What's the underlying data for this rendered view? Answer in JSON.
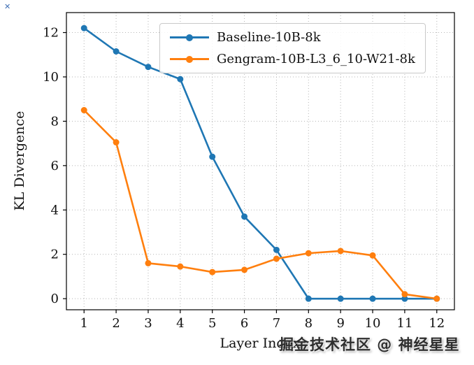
{
  "figure": {
    "background": "#ffffff"
  },
  "chart_data": {
    "type": "line",
    "title": "",
    "xlabel": "Layer Index",
    "ylabel": "KL Divergence",
    "x": [
      1,
      2,
      3,
      4,
      5,
      6,
      7,
      8,
      9,
      10,
      11,
      12
    ],
    "series": [
      {
        "name": "Baseline-10B-8k",
        "color": "#1f77b4",
        "marker": "circle",
        "values": [
          12.2,
          11.15,
          10.45,
          9.9,
          6.4,
          3.7,
          2.2,
          0.0,
          0.0,
          0.0,
          0.0,
          0.0
        ]
      },
      {
        "name": "Gengram-10B-L3_6_10-W21-8k",
        "color": "#ff7f0e",
        "marker": "circle",
        "values": [
          8.5,
          7.05,
          1.6,
          1.45,
          1.2,
          1.3,
          1.8,
          2.05,
          2.15,
          1.95,
          0.2,
          0.0
        ]
      }
    ],
    "xticks": [
      1,
      2,
      3,
      4,
      5,
      6,
      7,
      8,
      9,
      10,
      11,
      12
    ],
    "yticks": [
      0,
      2,
      4,
      6,
      8,
      10,
      12
    ],
    "xlim": [
      0.45,
      12.55
    ],
    "ylim": [
      -0.5,
      12.9
    ],
    "grid": true,
    "grid_style": "dotted",
    "legend_position": "upper center"
  },
  "colors": {
    "grid": "#b5b5b5",
    "spine": "#000000",
    "tick_label": "#111111"
  },
  "watermark": {
    "text": "掘金技术社区 @ 神经星星"
  },
  "corner_mark": {
    "glyph": "✕"
  }
}
